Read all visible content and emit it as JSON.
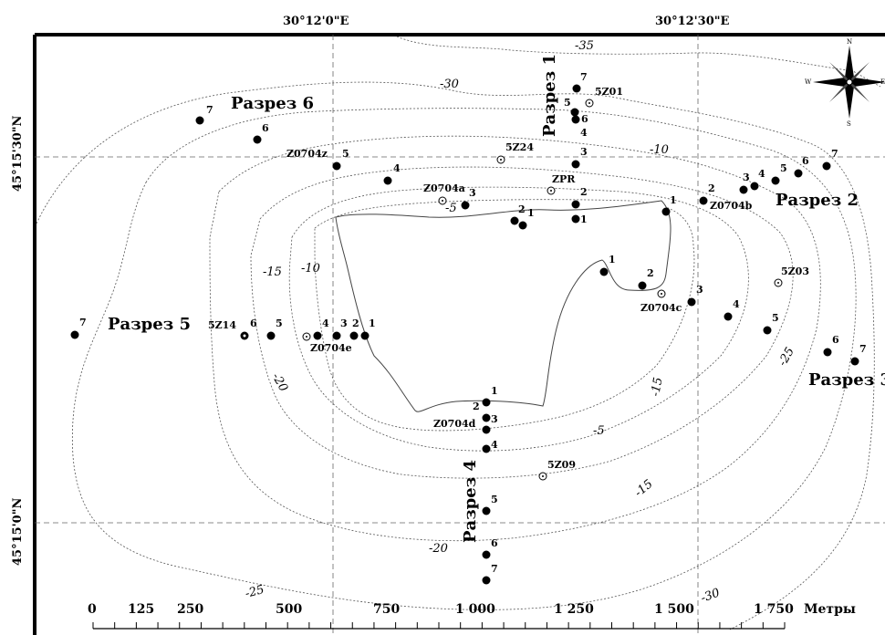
{
  "coordinates": {
    "lon_left": "30°12'0\"E",
    "lon_right": "30°12'30\"E",
    "lat_top": "45°15'30\"N",
    "lat_bottom": "45°15'0\"N"
  },
  "sections": {
    "s1": "Разрез 1",
    "s2": "Разрез 2",
    "s3": "Разрез 3",
    "s4": "Разрез 4",
    "s5": "Разрез 5",
    "s6": "Разрез 6"
  },
  "stations": {
    "z01": "5Z01",
    "z24": "5Z24",
    "zpr": "ZPR",
    "z0704z": "Z0704z",
    "z0704a": "Z0704a",
    "z0704b": "Z0704b",
    "z03": "5Z03",
    "z0704c": "Z0704c",
    "z14": "5Z14",
    "z0704e": "Z0704e",
    "z0704d": "Z0704d",
    "z09": "5Z09"
  },
  "depths": [
    "-35",
    "-30",
    "-10",
    "-5",
    "-15",
    "-10",
    "-15",
    "-20",
    "-25",
    "-5",
    "-15",
    "-20",
    "-25",
    "-30",
    "-35"
  ],
  "point_numbers": {
    "s1": [
      "7",
      "5",
      "6",
      "4",
      "3",
      "2",
      "1"
    ],
    "s2": [
      "1",
      "2",
      "3",
      "4",
      "5",
      "6",
      "7"
    ],
    "s3": [
      "1",
      "2",
      "3",
      "4",
      "5",
      "6",
      "7"
    ],
    "s4": [
      "1",
      "2",
      "3",
      "4",
      "5",
      "6",
      "7"
    ],
    "s5": [
      "1",
      "2",
      "3",
      "4",
      "5",
      "6",
      "7"
    ],
    "s6": [
      "7",
      "6",
      "5",
      "4",
      "3",
      "2",
      "1"
    ]
  },
  "scale": {
    "ticks": [
      "0",
      "125",
      "250",
      "500",
      "750",
      "1 000",
      "1 250",
      "1 500",
      "1 750"
    ],
    "unit": "Метры"
  },
  "compass": {
    "n": "N",
    "s": "S",
    "w": "W",
    "e": "E"
  },
  "colors": {
    "point": "#000000",
    "contour": "#555555",
    "grid": "#666666"
  }
}
